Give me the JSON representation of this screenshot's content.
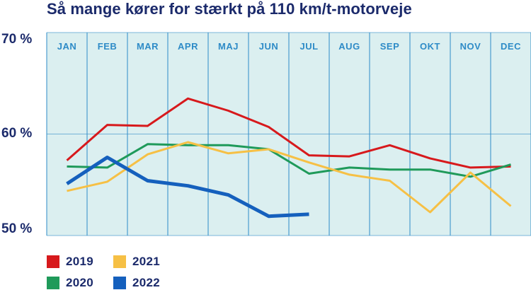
{
  "chart_data": {
    "type": "line",
    "title": "Så mange kører for stærkt på 110 km/t-motorveje",
    "xlabel": "",
    "ylabel": "",
    "categories": [
      "JAN",
      "FEB",
      "MAR",
      "APR",
      "MAJ",
      "JUN",
      "JUL",
      "AUG",
      "SEP",
      "OKT",
      "NOV",
      "DEC"
    ],
    "yticks": [
      {
        "value": 70,
        "label": "70 %"
      },
      {
        "value": 60,
        "label": "60 %"
      },
      {
        "value": 50,
        "label": "50 %"
      }
    ],
    "ylim": [
      50,
      70
    ],
    "grid": true,
    "legend_placement": "bottom-left",
    "series": [
      {
        "name": "2019",
        "color": "#d7191c",
        "width": 3,
        "values": [
          57.4,
          60.9,
          60.8,
          63.5,
          62.3,
          60.7,
          57.9,
          57.8,
          58.9,
          57.6,
          56.7,
          56.8
        ]
      },
      {
        "name": "2020",
        "color": "#1f9a5a",
        "width": 3,
        "values": [
          56.8,
          56.7,
          59.0,
          58.9,
          58.9,
          58.5,
          56.1,
          56.7,
          56.5,
          56.5,
          55.8,
          57.0
        ]
      },
      {
        "name": "2021",
        "color": "#f6c045",
        "width": 3,
        "values": [
          54.4,
          55.3,
          58.0,
          59.2,
          58.1,
          58.5,
          57.2,
          56.0,
          55.4,
          52.3,
          56.2,
          52.9
        ]
      },
      {
        "name": "2022",
        "color": "#1560bd",
        "width": 5,
        "values": [
          55.1,
          57.7,
          55.4,
          54.9,
          54.0,
          51.9,
          52.1,
          null,
          null,
          null,
          null,
          null
        ]
      }
    ]
  },
  "colors": {
    "plot_background": "#dbeff0",
    "grid": "#2e8bc7",
    "text": "#1b2a6b"
  }
}
